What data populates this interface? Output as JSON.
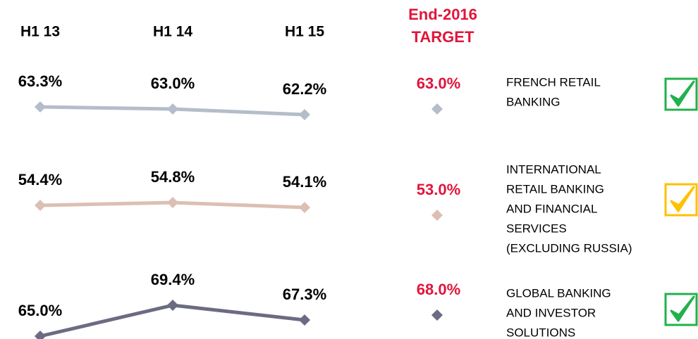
{
  "categories": [
    "H1 13",
    "H1 14",
    "H1 15"
  ],
  "target_title": [
    "End-2016",
    "TARGET"
  ],
  "chart_data": [
    {
      "type": "line",
      "name": [
        "FRENCH RETAIL",
        "BANKING"
      ],
      "color": "#b4bdc9",
      "values": [
        63.3,
        63.0,
        62.2
      ],
      "value_labels": [
        "63.3%",
        "63.0%",
        "62.2%"
      ],
      "target": 63.0,
      "target_label": "63.0%",
      "check_color": "#22b14c"
    },
    {
      "type": "line",
      "name": [
        "INTERNATIONAL",
        "RETAIL BANKING",
        "AND FINANCIAL",
        "SERVICES",
        "(EXCLUDING RUSSIA)"
      ],
      "color": "#dcbfb4",
      "values": [
        54.4,
        54.8,
        54.1
      ],
      "value_labels": [
        "54.4%",
        "54.8%",
        "54.1%"
      ],
      "target": 53.0,
      "target_label": "53.0%",
      "check_color": "#ffc000"
    },
    {
      "type": "line",
      "name": [
        "GLOBAL BANKING",
        "AND INVESTOR",
        "SOLUTIONS"
      ],
      "color": "#6b6b82",
      "values": [
        65.0,
        69.4,
        67.3
      ],
      "value_labels": [
        "65.0%",
        "69.4%",
        "67.3%"
      ],
      "target": 68.0,
      "target_label": "68.0%",
      "check_color": "#22b14c"
    }
  ]
}
